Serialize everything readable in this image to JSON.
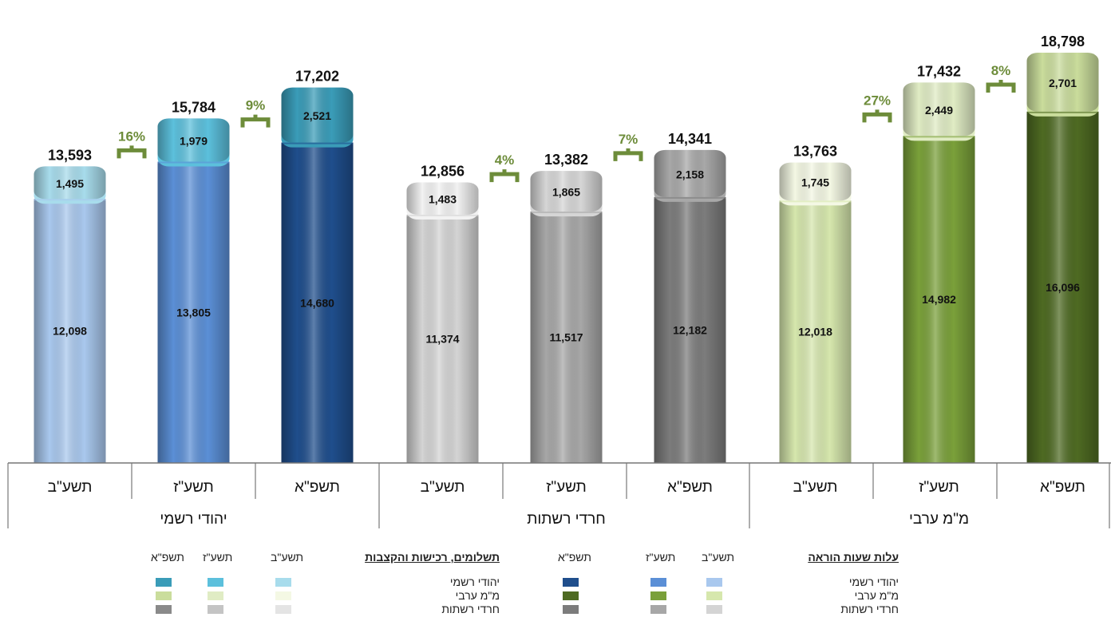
{
  "chart_data": {
    "type": "bar",
    "stacked": true,
    "sectors": [
      {
        "name": "יהודי רשמי",
        "bars": [
          {
            "year": "תשע\"ב",
            "base": 12098,
            "top": 1495,
            "total": "13,593",
            "base_label": "12,098",
            "top_label": "1,495"
          },
          {
            "year": "תשע\"ז",
            "base": 13805,
            "top": 1979,
            "total": "15,784",
            "base_label": "13,805",
            "top_label": "1,979"
          },
          {
            "year": "תשפ\"א",
            "base": 14680,
            "top": 2521,
            "total": "17,202",
            "base_label": "14,680",
            "top_label": "2,521"
          }
        ],
        "growth": [
          "16%",
          "9%"
        ]
      },
      {
        "name": "חרדי רשתות",
        "bars": [
          {
            "year": "תשע\"ב",
            "base": 11374,
            "top": 1483,
            "total": "12,856",
            "base_label": "11,374",
            "top_label": "1,483"
          },
          {
            "year": "תשע\"ז",
            "base": 11517,
            "top": 1865,
            "total": "13,382",
            "base_label": "11,517",
            "top_label": "1,865"
          },
          {
            "year": "תשפ\"א",
            "base": 12182,
            "top": 2158,
            "total": "14,341",
            "base_label": "12,182",
            "top_label": "2,158"
          }
        ],
        "growth": [
          "4%",
          "7%"
        ]
      },
      {
        "name": "מ\"מ ערבי",
        "bars": [
          {
            "year": "תשע\"ב",
            "base": 12018,
            "top": 1745,
            "total": "13,763",
            "base_label": "12,018",
            "top_label": "1,745"
          },
          {
            "year": "תשע\"ז",
            "base": 14982,
            "top": 2449,
            "total": "17,432",
            "base_label": "14,982",
            "top_label": "2,449"
          },
          {
            "year": "תשפ\"א",
            "base": 16096,
            "top": 2701,
            "total": "18,798",
            "base_label": "16,096",
            "top_label": "2,701"
          }
        ],
        "growth": [
          "27%",
          "8%"
        ]
      }
    ],
    "colors": {
      "base": [
        [
          "#a9c8ee",
          "#5b8fd6",
          "#1f4e8c"
        ],
        [
          "#d4d4d4",
          "#a7a7a7",
          "#7c7c7c"
        ],
        [
          "#d6e7ad",
          "#7aa03a",
          "#4e6a22"
        ]
      ],
      "top": [
        [
          "#a8dcec",
          "#5cc0dc",
          "#3a9cb8"
        ],
        [
          "#f2f2f2",
          "#d6d6d6",
          "#a8a8a8"
        ],
        [
          "#f4f8e4",
          "#e0ecc4",
          "#cadd9c"
        ]
      ],
      "growth": "#6d8c3a"
    }
  },
  "legend_right": {
    "title": "עלות שעות הוראה",
    "columns": [
      "תשע\"ב",
      "תשע\"ז",
      "תשפ\"א"
    ],
    "rows": [
      "יהודי רשמי",
      "מ\"מ ערבי",
      "חרדי רשתות"
    ],
    "swatches": [
      [
        "#a9c8ee",
        "#5b8fd6",
        "#1f4e8c"
      ],
      [
        "#d6e7ad",
        "#7aa03a",
        "#4e6a22"
      ],
      [
        "#d4d4d4",
        "#a7a7a7",
        "#7c7c7c"
      ]
    ]
  },
  "legend_left": {
    "title": "תשלומים, רכישות והקצבות",
    "columns": [
      "תשע\"ב",
      "תשע\"ז",
      "תשפ\"א"
    ],
    "rows": [
      "יהודי רשמי",
      "מ\"מ ערבי",
      "חרדי רשתות"
    ],
    "swatches": [
      [
        "#a8dcec",
        "#5cc0dc",
        "#3a9cb8"
      ],
      [
        "#f4f8e4",
        "#e0ecc4",
        "#cadd9c"
      ],
      [
        "#e4e4e4",
        "#c4c4c4",
        "#8a8a8a"
      ]
    ]
  }
}
